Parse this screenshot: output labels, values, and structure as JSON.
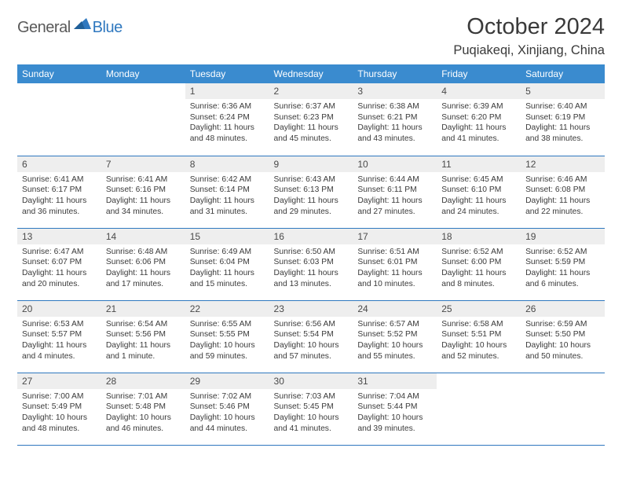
{
  "brand": {
    "part1": "General",
    "part2": "Blue"
  },
  "title": "October 2024",
  "location": "Puqiakeqi, Xinjiang, China",
  "colors": {
    "header_bg": "#3a8bcf",
    "header_text": "#ffffff",
    "rule": "#2f78bf",
    "daynum_bg": "#eeeeee",
    "text": "#3a3a3a",
    "brand_gray": "#5a5a5a",
    "brand_blue": "#2f78bf",
    "page_bg": "#ffffff"
  },
  "typography": {
    "title_fontsize_pt": 22,
    "location_fontsize_pt": 12.5,
    "dayhead_fontsize_pt": 9,
    "daynum_fontsize_pt": 9,
    "body_fontsize_pt": 7.8
  },
  "layout": {
    "columns": 7,
    "rows": 5,
    "leading_blanks": 2
  },
  "weekdays": [
    "Sunday",
    "Monday",
    "Tuesday",
    "Wednesday",
    "Thursday",
    "Friday",
    "Saturday"
  ],
  "days": [
    {
      "n": "1",
      "sunrise": "6:36 AM",
      "sunset": "6:24 PM",
      "daylight": "11 hours and 48 minutes."
    },
    {
      "n": "2",
      "sunrise": "6:37 AM",
      "sunset": "6:23 PM",
      "daylight": "11 hours and 45 minutes."
    },
    {
      "n": "3",
      "sunrise": "6:38 AM",
      "sunset": "6:21 PM",
      "daylight": "11 hours and 43 minutes."
    },
    {
      "n": "4",
      "sunrise": "6:39 AM",
      "sunset": "6:20 PM",
      "daylight": "11 hours and 41 minutes."
    },
    {
      "n": "5",
      "sunrise": "6:40 AM",
      "sunset": "6:19 PM",
      "daylight": "11 hours and 38 minutes."
    },
    {
      "n": "6",
      "sunrise": "6:41 AM",
      "sunset": "6:17 PM",
      "daylight": "11 hours and 36 minutes."
    },
    {
      "n": "7",
      "sunrise": "6:41 AM",
      "sunset": "6:16 PM",
      "daylight": "11 hours and 34 minutes."
    },
    {
      "n": "8",
      "sunrise": "6:42 AM",
      "sunset": "6:14 PM",
      "daylight": "11 hours and 31 minutes."
    },
    {
      "n": "9",
      "sunrise": "6:43 AM",
      "sunset": "6:13 PM",
      "daylight": "11 hours and 29 minutes."
    },
    {
      "n": "10",
      "sunrise": "6:44 AM",
      "sunset": "6:11 PM",
      "daylight": "11 hours and 27 minutes."
    },
    {
      "n": "11",
      "sunrise": "6:45 AM",
      "sunset": "6:10 PM",
      "daylight": "11 hours and 24 minutes."
    },
    {
      "n": "12",
      "sunrise": "6:46 AM",
      "sunset": "6:08 PM",
      "daylight": "11 hours and 22 minutes."
    },
    {
      "n": "13",
      "sunrise": "6:47 AM",
      "sunset": "6:07 PM",
      "daylight": "11 hours and 20 minutes."
    },
    {
      "n": "14",
      "sunrise": "6:48 AM",
      "sunset": "6:06 PM",
      "daylight": "11 hours and 17 minutes."
    },
    {
      "n": "15",
      "sunrise": "6:49 AM",
      "sunset": "6:04 PM",
      "daylight": "11 hours and 15 minutes."
    },
    {
      "n": "16",
      "sunrise": "6:50 AM",
      "sunset": "6:03 PM",
      "daylight": "11 hours and 13 minutes."
    },
    {
      "n": "17",
      "sunrise": "6:51 AM",
      "sunset": "6:01 PM",
      "daylight": "11 hours and 10 minutes."
    },
    {
      "n": "18",
      "sunrise": "6:52 AM",
      "sunset": "6:00 PM",
      "daylight": "11 hours and 8 minutes."
    },
    {
      "n": "19",
      "sunrise": "6:52 AM",
      "sunset": "5:59 PM",
      "daylight": "11 hours and 6 minutes."
    },
    {
      "n": "20",
      "sunrise": "6:53 AM",
      "sunset": "5:57 PM",
      "daylight": "11 hours and 4 minutes."
    },
    {
      "n": "21",
      "sunrise": "6:54 AM",
      "sunset": "5:56 PM",
      "daylight": "11 hours and 1 minute."
    },
    {
      "n": "22",
      "sunrise": "6:55 AM",
      "sunset": "5:55 PM",
      "daylight": "10 hours and 59 minutes."
    },
    {
      "n": "23",
      "sunrise": "6:56 AM",
      "sunset": "5:54 PM",
      "daylight": "10 hours and 57 minutes."
    },
    {
      "n": "24",
      "sunrise": "6:57 AM",
      "sunset": "5:52 PM",
      "daylight": "10 hours and 55 minutes."
    },
    {
      "n": "25",
      "sunrise": "6:58 AM",
      "sunset": "5:51 PM",
      "daylight": "10 hours and 52 minutes."
    },
    {
      "n": "26",
      "sunrise": "6:59 AM",
      "sunset": "5:50 PM",
      "daylight": "10 hours and 50 minutes."
    },
    {
      "n": "27",
      "sunrise": "7:00 AM",
      "sunset": "5:49 PM",
      "daylight": "10 hours and 48 minutes."
    },
    {
      "n": "28",
      "sunrise": "7:01 AM",
      "sunset": "5:48 PM",
      "daylight": "10 hours and 46 minutes."
    },
    {
      "n": "29",
      "sunrise": "7:02 AM",
      "sunset": "5:46 PM",
      "daylight": "10 hours and 44 minutes."
    },
    {
      "n": "30",
      "sunrise": "7:03 AM",
      "sunset": "5:45 PM",
      "daylight": "10 hours and 41 minutes."
    },
    {
      "n": "31",
      "sunrise": "7:04 AM",
      "sunset": "5:44 PM",
      "daylight": "10 hours and 39 minutes."
    }
  ],
  "labels": {
    "sunrise": "Sunrise:",
    "sunset": "Sunset:",
    "daylight": "Daylight:"
  }
}
